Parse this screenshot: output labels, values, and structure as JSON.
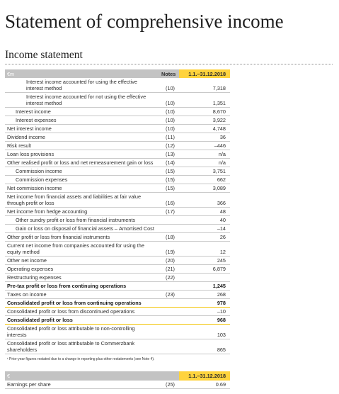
{
  "page": {
    "title": "Statement of comprehensive income",
    "section_title": "Income statement"
  },
  "colors": {
    "highlight_yellow": "#ffd33d",
    "total_rule_yellow": "#f2c300",
    "header_gray": "#c3c3c3"
  },
  "income_statement": {
    "header": {
      "unit": "€m",
      "notes": "Notes",
      "period": "1.1.–31.12.2018"
    },
    "rows": [
      {
        "label": "Interest income accounted for using the effective interest method",
        "indent_level": 2,
        "note": "(10)",
        "value": "7,318",
        "style": "normal"
      },
      {
        "label": "Interest income accounted for not using the effective interest method",
        "indent_level": 2,
        "note": "(10)",
        "value": "1,351",
        "style": "normal"
      },
      {
        "label": "Interest income",
        "indent_level": 1,
        "note": "(10)",
        "value": "8,670",
        "style": "normal"
      },
      {
        "label": "Interest expenses",
        "indent_level": 1,
        "note": "(10)",
        "value": "3,922",
        "style": "normal"
      },
      {
        "label": "Net interest income",
        "indent_level": 0,
        "note": "(10)",
        "value": "4,748",
        "style": "normal"
      },
      {
        "label": "Dividend income",
        "indent_level": 0,
        "note": "(11)",
        "value": "36",
        "style": "normal"
      },
      {
        "label": "Risk result",
        "indent_level": 0,
        "note": "(12)",
        "value": "–446",
        "style": "normal"
      },
      {
        "label": "Loan loss provisions",
        "indent_level": 0,
        "note": "(13)",
        "value": "n/a",
        "style": "normal"
      },
      {
        "label": "Other realised profit or loss and net remeasurement gain or loss",
        "indent_level": 0,
        "note": "(14)",
        "value": "n/a",
        "style": "normal"
      },
      {
        "label": "Commission income",
        "indent_level": 1,
        "note": "(15)",
        "value": "3,751",
        "style": "normal"
      },
      {
        "label": "Commission expenses",
        "indent_level": 1,
        "note": "(15)",
        "value": "662",
        "style": "normal"
      },
      {
        "label": "Net commission income",
        "indent_level": 0,
        "note": "(15)",
        "value": "3,089",
        "style": "normal"
      },
      {
        "label": "Net income from financial assets and liabilities at fair value through profit or loss",
        "indent_level": 0,
        "note": "(16)",
        "value": "366",
        "style": "normal"
      },
      {
        "label": "Net income from hedge accounting",
        "indent_level": 0,
        "note": "(17)",
        "value": "48",
        "style": "normal"
      },
      {
        "label": "Other sundry profit or loss from financial instruments",
        "indent_level": 1,
        "value": "40",
        "style": "normal"
      },
      {
        "label": "Gain or loss on disposal of financial assets – Amortised Cost",
        "indent_level": 1,
        "value": "–14",
        "style": "normal"
      },
      {
        "label": "Other profit or loss from financial instruments",
        "indent_level": 0,
        "note": "(18)",
        "value": "26",
        "style": "normal"
      },
      {
        "label": "Current net income from companies accounted for using the equity method",
        "indent_level": 0,
        "note": "(19)",
        "value": "12",
        "style": "normal"
      },
      {
        "label": "Other net income",
        "indent_level": 0,
        "note": "(20)",
        "value": "245",
        "style": "normal"
      },
      {
        "label": "Operating expenses",
        "indent_level": 0,
        "note": "(21)",
        "value": "6,879",
        "style": "normal"
      },
      {
        "label": "Restructuring expenses",
        "indent_level": 0,
        "note": "(22)",
        "style": "normal"
      },
      {
        "label": "Pre-tax profit or loss from continuing operations",
        "indent_level": 0,
        "value": "1,245",
        "style": "bold"
      },
      {
        "label": "Taxes on income",
        "indent_level": 0,
        "note": "(23)",
        "value": "268",
        "style": "normal"
      },
      {
        "label": "Consolidated profit or loss from continuing operations",
        "indent_level": 0,
        "value": "978",
        "style": "total"
      },
      {
        "label": "Consolidated profit or loss from discontinued operations",
        "indent_level": 0,
        "value": "–10",
        "style": "normal"
      },
      {
        "label": "Consolidated profit or loss",
        "indent_level": 0,
        "value": "968",
        "style": "total"
      },
      {
        "label": "Consolidated profit or loss attributable to non-controlling interests",
        "indent_level": 0,
        "value": "103",
        "style": "normal"
      },
      {
        "label": "Consolidated profit or loss attributable to Commerzbank shareholders",
        "indent_level": 0,
        "value": "865",
        "style": "normal"
      }
    ],
    "footnote": "¹ Prior-year figures restated due to a change in reporting plus other restatements (see Note 4)."
  },
  "eps": {
    "header": {
      "unit": "€",
      "period": "1.1.–31.12.2018"
    },
    "rows": [
      {
        "label": "Earnings per share",
        "note": "(25)",
        "value": "0.69"
      }
    ]
  }
}
